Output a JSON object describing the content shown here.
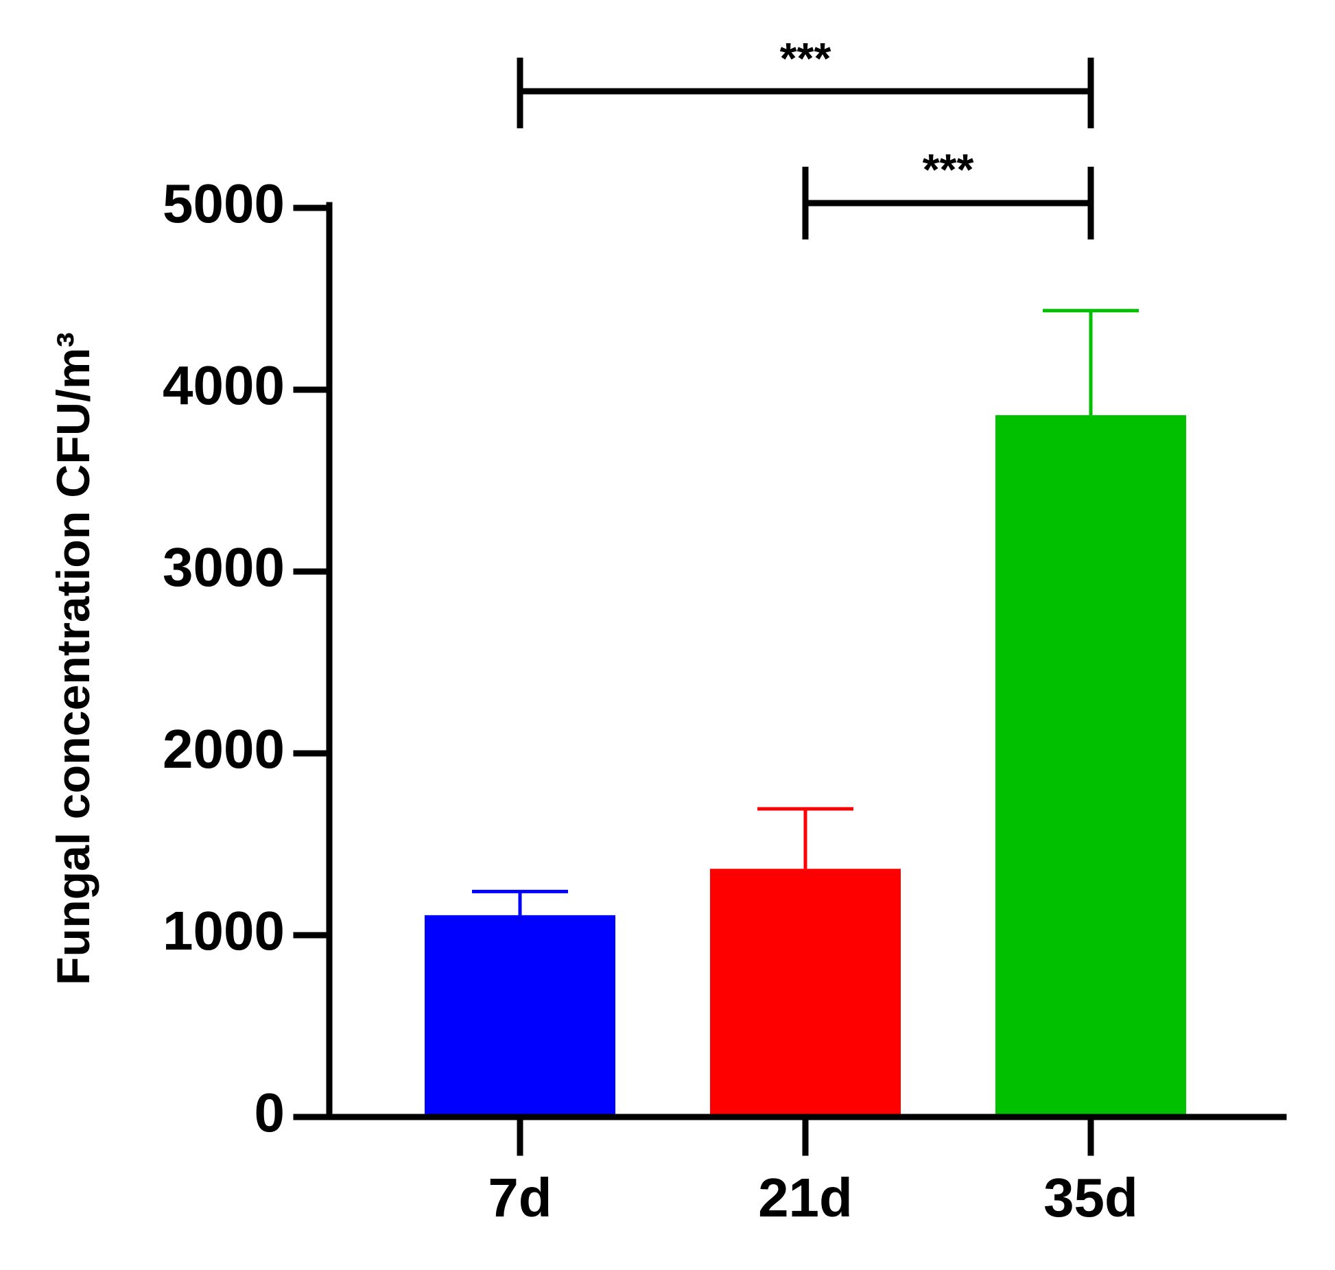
{
  "chart_data": {
    "type": "bar",
    "y_label": "Fungal concentration CFU/m³",
    "categories": [
      "7d",
      "21d",
      "35d"
    ],
    "values": [
      1110,
      1365,
      3860
    ],
    "errors": [
      130,
      330,
      575
    ],
    "colors": [
      "#0000ff",
      "#ff0000",
      "#00c000"
    ],
    "ylim": [
      0,
      5000
    ],
    "yticks": [
      0,
      1000,
      2000,
      3000,
      4000,
      5000
    ],
    "grid": false,
    "comparisons": [
      {
        "from": "7d",
        "to": "35d",
        "label": "***"
      },
      {
        "from": "21d",
        "to": "35d",
        "label": "***"
      }
    ]
  }
}
